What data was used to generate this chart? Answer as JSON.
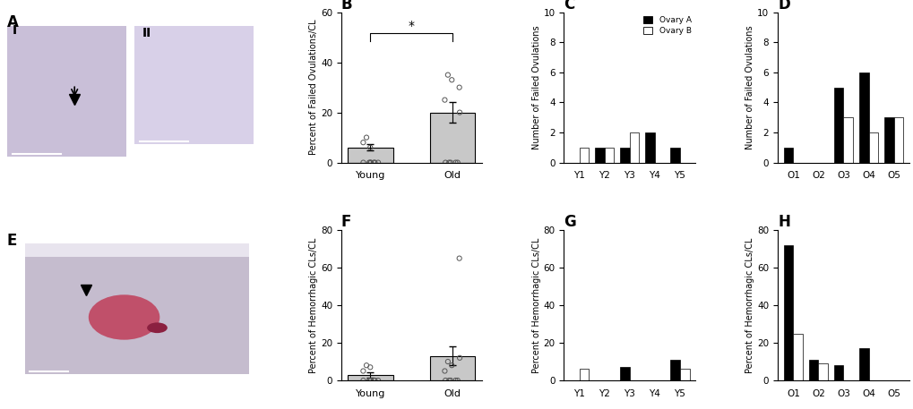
{
  "panel_B": {
    "title": "B",
    "ylabel": "Percent of Failed Ovulations/CL",
    "groups": [
      "Young",
      "Old"
    ],
    "means": [
      6.0,
      20.0
    ],
    "sems": [
      1.2,
      4.0
    ],
    "young_points": [
      0,
      0,
      0,
      0,
      0,
      0,
      0,
      8,
      10,
      6
    ],
    "old_points": [
      0,
      0,
      0,
      0,
      0,
      30,
      35,
      33,
      20,
      25
    ],
    "ylim": [
      0,
      60
    ],
    "yticks": [
      0,
      20,
      40,
      60
    ],
    "sig_text": "*",
    "bar_color": "#c8c8c8",
    "bar_edge_color": "#000000",
    "bar_width": 0.55
  },
  "panel_C": {
    "title": "C",
    "ylabel": "Number of Failed Ovulations",
    "xlabel_labels": [
      "Y1",
      "Y2",
      "Y3",
      "Y4",
      "Y5"
    ],
    "ovary_A": [
      0,
      1,
      1,
      2,
      1
    ],
    "ovary_B": [
      1,
      1,
      2,
      0,
      0
    ],
    "ylim": [
      0,
      10
    ],
    "yticks": [
      0,
      2,
      4,
      6,
      8,
      10
    ]
  },
  "panel_D": {
    "title": "D",
    "ylabel": "Number of Failed Ovulations",
    "xlabel_labels": [
      "O1",
      "O2",
      "O3",
      "O4",
      "O5"
    ],
    "ovary_A": [
      1,
      0,
      5,
      6,
      3
    ],
    "ovary_B": [
      0,
      0,
      3,
      2,
      3
    ],
    "ylim": [
      0,
      10
    ],
    "yticks": [
      0,
      2,
      4,
      6,
      8,
      10
    ]
  },
  "panel_F": {
    "title": "F",
    "ylabel": "Percent of Hemorrhagic CLs/CL",
    "groups": [
      "Young",
      "Old"
    ],
    "means": [
      3.0,
      13.0
    ],
    "sems": [
      1.5,
      5.0
    ],
    "young_points": [
      0,
      0,
      0,
      0,
      0,
      0,
      0,
      5,
      8,
      7
    ],
    "old_points": [
      0,
      0,
      0,
      0,
      0,
      65,
      10,
      8,
      12,
      5
    ],
    "ylim": [
      0,
      80
    ],
    "yticks": [
      0,
      20,
      40,
      60,
      80
    ],
    "bar_color": "#c8c8c8",
    "bar_edge_color": "#000000",
    "bar_width": 0.55
  },
  "panel_G": {
    "title": "G",
    "ylabel": "Percent of Hemorrhagic CLs/CL",
    "xlabel_labels": [
      "Y1",
      "Y2",
      "Y3",
      "Y4",
      "Y5"
    ],
    "ovary_A": [
      0,
      0,
      7,
      0,
      11
    ],
    "ovary_B": [
      6,
      0,
      0,
      0,
      6
    ],
    "ylim": [
      0,
      80
    ],
    "yticks": [
      0,
      20,
      40,
      60,
      80
    ]
  },
  "panel_H": {
    "title": "H",
    "ylabel": "Percent of Hemorrhagic CLs/CL",
    "xlabel_labels": [
      "O1",
      "O2",
      "O3",
      "O4",
      "O5"
    ],
    "ovary_A": [
      72,
      11,
      8,
      17,
      0
    ],
    "ovary_B": [
      25,
      9,
      0,
      0,
      0
    ],
    "ylim": [
      0,
      80
    ],
    "yticks": [
      0,
      20,
      40,
      60,
      80
    ]
  },
  "legend": {
    "ovary_A_label": "Ovary A",
    "ovary_A_color": "#000000",
    "ovary_B_label": "Ovary B",
    "ovary_B_color": "#ffffff"
  },
  "background_color": "#ffffff"
}
